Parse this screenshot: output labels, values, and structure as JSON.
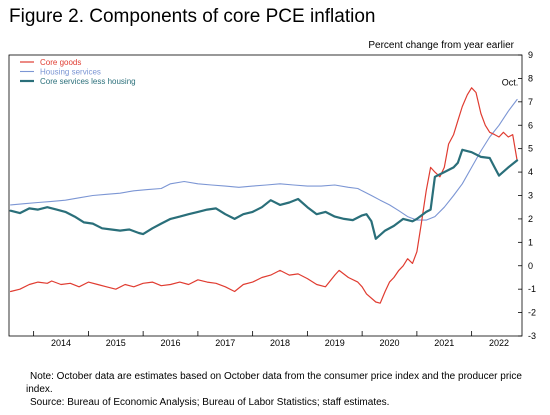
{
  "figure": {
    "title": "Figure 2. Components of core PCE inflation",
    "note": "Note: October data are estimates based on October data from the consumer price index and the producer price index.",
    "source": "Source: Bureau of Economic Analysis; Bureau of Labor Statistics; staff estimates."
  },
  "chart_data": {
    "type": "line",
    "units": "Percent change from year earlier",
    "annotation": "Oct.",
    "ylim": [
      -3,
      9
    ],
    "yticks": [
      "-3",
      "-2",
      "-1",
      "0",
      "1",
      "2",
      "3",
      "4",
      "5",
      "6",
      "7",
      "8",
      "9"
    ],
    "y_axis_side": "right",
    "xlim": [
      2013.55,
      2022.92
    ],
    "xticks": [
      "2014",
      "2015",
      "2016",
      "2017",
      "2018",
      "2019",
      "2020",
      "2021",
      "2022"
    ],
    "grid": false,
    "legend_position": "top-left",
    "series": [
      {
        "name": "Core goods",
        "color": "#e03c31",
        "width": 1.2,
        "points": [
          [
            2013.58,
            -1.1
          ],
          [
            2013.75,
            -1.0
          ],
          [
            2013.92,
            -0.8
          ],
          [
            2014.08,
            -0.7
          ],
          [
            2014.25,
            -0.75
          ],
          [
            2014.33,
            -0.65
          ],
          [
            2014.5,
            -0.8
          ],
          [
            2014.67,
            -0.75
          ],
          [
            2014.83,
            -0.9
          ],
          [
            2015.0,
            -0.7
          ],
          [
            2015.17,
            -0.8
          ],
          [
            2015.33,
            -0.9
          ],
          [
            2015.5,
            -1.0
          ],
          [
            2015.67,
            -0.8
          ],
          [
            2015.83,
            -0.9
          ],
          [
            2016.0,
            -0.75
          ],
          [
            2016.17,
            -0.7
          ],
          [
            2016.33,
            -0.85
          ],
          [
            2016.5,
            -0.8
          ],
          [
            2016.67,
            -0.7
          ],
          [
            2016.83,
            -0.8
          ],
          [
            2017.0,
            -0.6
          ],
          [
            2017.17,
            -0.7
          ],
          [
            2017.33,
            -0.75
          ],
          [
            2017.5,
            -0.9
          ],
          [
            2017.67,
            -1.1
          ],
          [
            2017.83,
            -0.8
          ],
          [
            2018.0,
            -0.7
          ],
          [
            2018.17,
            -0.5
          ],
          [
            2018.33,
            -0.4
          ],
          [
            2018.5,
            -0.2
          ],
          [
            2018.67,
            -0.4
          ],
          [
            2018.83,
            -0.35
          ],
          [
            2019.0,
            -0.55
          ],
          [
            2019.17,
            -0.8
          ],
          [
            2019.33,
            -0.9
          ],
          [
            2019.5,
            -0.4
          ],
          [
            2019.58,
            -0.2
          ],
          [
            2019.75,
            -0.5
          ],
          [
            2019.92,
            -0.7
          ],
          [
            2020.0,
            -0.9
          ],
          [
            2020.08,
            -1.2
          ],
          [
            2020.25,
            -1.55
          ],
          [
            2020.33,
            -1.6
          ],
          [
            2020.42,
            -1.1
          ],
          [
            2020.5,
            -0.7
          ],
          [
            2020.58,
            -0.5
          ],
          [
            2020.67,
            -0.2
          ],
          [
            2020.75,
            0.0
          ],
          [
            2020.83,
            0.3
          ],
          [
            2020.92,
            0.1
          ],
          [
            2021.0,
            0.6
          ],
          [
            2021.08,
            1.8
          ],
          [
            2021.17,
            3.2
          ],
          [
            2021.25,
            4.2
          ],
          [
            2021.33,
            4.0
          ],
          [
            2021.42,
            3.8
          ],
          [
            2021.5,
            4.2
          ],
          [
            2021.58,
            5.2
          ],
          [
            2021.67,
            5.6
          ],
          [
            2021.75,
            6.2
          ],
          [
            2021.83,
            6.8
          ],
          [
            2021.92,
            7.3
          ],
          [
            2022.0,
            7.6
          ],
          [
            2022.08,
            7.4
          ],
          [
            2022.17,
            6.5
          ],
          [
            2022.25,
            6.0
          ],
          [
            2022.33,
            5.7
          ],
          [
            2022.42,
            5.6
          ],
          [
            2022.5,
            5.5
          ],
          [
            2022.58,
            5.7
          ],
          [
            2022.67,
            5.5
          ],
          [
            2022.75,
            5.6
          ],
          [
            2022.83,
            4.5
          ]
        ]
      },
      {
        "name": "Housing services",
        "color": "#7c96d4",
        "width": 1.1,
        "points": [
          [
            2013.58,
            2.6
          ],
          [
            2013.83,
            2.65
          ],
          [
            2014.08,
            2.7
          ],
          [
            2014.33,
            2.75
          ],
          [
            2014.58,
            2.8
          ],
          [
            2014.83,
            2.9
          ],
          [
            2015.08,
            3.0
          ],
          [
            2015.33,
            3.05
          ],
          [
            2015.58,
            3.1
          ],
          [
            2015.83,
            3.2
          ],
          [
            2016.08,
            3.25
          ],
          [
            2016.33,
            3.3
          ],
          [
            2016.5,
            3.5
          ],
          [
            2016.75,
            3.6
          ],
          [
            2017.0,
            3.5
          ],
          [
            2017.25,
            3.45
          ],
          [
            2017.5,
            3.4
          ],
          [
            2017.75,
            3.35
          ],
          [
            2018.0,
            3.4
          ],
          [
            2018.25,
            3.45
          ],
          [
            2018.5,
            3.5
          ],
          [
            2018.75,
            3.45
          ],
          [
            2019.0,
            3.4
          ],
          [
            2019.25,
            3.4
          ],
          [
            2019.5,
            3.45
          ],
          [
            2019.75,
            3.35
          ],
          [
            2019.92,
            3.3
          ],
          [
            2020.0,
            3.2
          ],
          [
            2020.17,
            3.0
          ],
          [
            2020.33,
            2.8
          ],
          [
            2020.5,
            2.6
          ],
          [
            2020.67,
            2.35
          ],
          [
            2020.83,
            2.1
          ],
          [
            2021.0,
            1.95
          ],
          [
            2021.17,
            1.95
          ],
          [
            2021.33,
            2.1
          ],
          [
            2021.5,
            2.5
          ],
          [
            2021.67,
            3.0
          ],
          [
            2021.83,
            3.5
          ],
          [
            2022.0,
            4.2
          ],
          [
            2022.17,
            4.9
          ],
          [
            2022.33,
            5.5
          ],
          [
            2022.5,
            6.0
          ],
          [
            2022.67,
            6.6
          ],
          [
            2022.83,
            7.1
          ]
        ]
      },
      {
        "name": "Core services less housing",
        "color": "#2a6f7a",
        "width": 2.2,
        "points": [
          [
            2013.58,
            2.35
          ],
          [
            2013.75,
            2.25
          ],
          [
            2013.92,
            2.45
          ],
          [
            2014.08,
            2.4
          ],
          [
            2014.25,
            2.5
          ],
          [
            2014.42,
            2.4
          ],
          [
            2014.58,
            2.3
          ],
          [
            2014.75,
            2.1
          ],
          [
            2014.92,
            1.85
          ],
          [
            2015.08,
            1.8
          ],
          [
            2015.25,
            1.6
          ],
          [
            2015.42,
            1.55
          ],
          [
            2015.58,
            1.5
          ],
          [
            2015.75,
            1.55
          ],
          [
            2015.92,
            1.4
          ],
          [
            2016.0,
            1.35
          ],
          [
            2016.17,
            1.6
          ],
          [
            2016.33,
            1.8
          ],
          [
            2016.5,
            2.0
          ],
          [
            2016.67,
            2.1
          ],
          [
            2016.83,
            2.2
          ],
          [
            2017.0,
            2.3
          ],
          [
            2017.17,
            2.4
          ],
          [
            2017.33,
            2.45
          ],
          [
            2017.5,
            2.2
          ],
          [
            2017.67,
            2.0
          ],
          [
            2017.83,
            2.2
          ],
          [
            2018.0,
            2.3
          ],
          [
            2018.17,
            2.5
          ],
          [
            2018.33,
            2.8
          ],
          [
            2018.5,
            2.6
          ],
          [
            2018.67,
            2.7
          ],
          [
            2018.83,
            2.85
          ],
          [
            2019.0,
            2.5
          ],
          [
            2019.17,
            2.2
          ],
          [
            2019.33,
            2.3
          ],
          [
            2019.5,
            2.1
          ],
          [
            2019.67,
            2.0
          ],
          [
            2019.83,
            1.95
          ],
          [
            2020.0,
            2.15
          ],
          [
            2020.08,
            2.2
          ],
          [
            2020.17,
            1.9
          ],
          [
            2020.25,
            1.15
          ],
          [
            2020.42,
            1.5
          ],
          [
            2020.58,
            1.7
          ],
          [
            2020.75,
            2.0
          ],
          [
            2020.92,
            1.9
          ],
          [
            2021.0,
            2.0
          ],
          [
            2021.17,
            2.3
          ],
          [
            2021.25,
            2.4
          ],
          [
            2021.33,
            3.8
          ],
          [
            2021.5,
            4.0
          ],
          [
            2021.67,
            4.2
          ],
          [
            2021.75,
            4.4
          ],
          [
            2021.83,
            4.95
          ],
          [
            2022.0,
            4.85
          ],
          [
            2022.17,
            4.65
          ],
          [
            2022.33,
            4.6
          ],
          [
            2022.42,
            4.2
          ],
          [
            2022.5,
            3.85
          ],
          [
            2022.67,
            4.2
          ],
          [
            2022.83,
            4.5
          ]
        ]
      }
    ]
  }
}
